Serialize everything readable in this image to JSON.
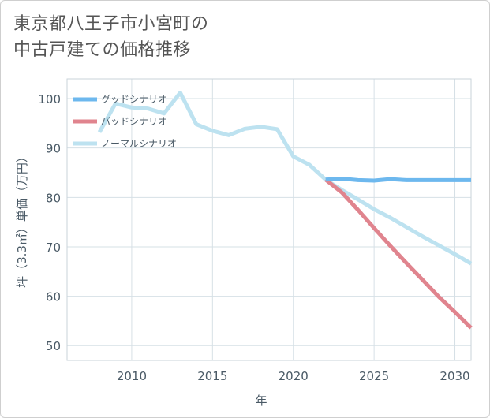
{
  "title": {
    "line1": "東京都八王子市小宮町の",
    "line2": "中古戸建ての価格推移"
  },
  "chart_data": {
    "type": "line",
    "xlabel": "年",
    "ylabel": "坪（3.3㎡）単価（万円）",
    "xlim": [
      2006,
      2031
    ],
    "ylim": [
      47,
      104
    ],
    "xticks": [
      2010,
      2015,
      2020,
      2025,
      2030
    ],
    "yticks": [
      50,
      60,
      70,
      80,
      90,
      100
    ],
    "grid": true,
    "legend_position": "top-left",
    "series": [
      {
        "name": "グッドシナリオ",
        "color": "#6db8ee",
        "x": [
          2022,
          2023,
          2024,
          2025,
          2026,
          2027,
          2028,
          2029,
          2030,
          2031
        ],
        "y": [
          83.6,
          83.8,
          83.5,
          83.4,
          83.7,
          83.5,
          83.5,
          83.5,
          83.5,
          83.5
        ]
      },
      {
        "name": "バッドシナリオ",
        "color": "#e0848e",
        "x": [
          2022,
          2023,
          2024,
          2025,
          2026,
          2027,
          2028,
          2029,
          2030,
          2031
        ],
        "y": [
          83.6,
          81.0,
          77.5,
          73.8,
          70.2,
          66.7,
          63.3,
          59.9,
          56.8,
          53.6
        ]
      },
      {
        "name": "ノーマルシナリオ",
        "color": "#bde2f0",
        "x": [
          2008,
          2009,
          2010,
          2011,
          2012,
          2013,
          2014,
          2015,
          2016,
          2017,
          2018,
          2019,
          2020,
          2021,
          2022,
          2023,
          2024,
          2025,
          2026,
          2027,
          2028,
          2029,
          2030,
          2031
        ],
        "y": [
          93.2,
          99.0,
          98.2,
          98.0,
          97.0,
          101.2,
          94.8,
          93.5,
          92.6,
          93.9,
          94.3,
          93.8,
          88.3,
          86.6,
          83.6,
          81.5,
          79.6,
          77.6,
          75.9,
          74.0,
          72.1,
          70.3,
          68.5,
          66.6
        ]
      }
    ]
  }
}
